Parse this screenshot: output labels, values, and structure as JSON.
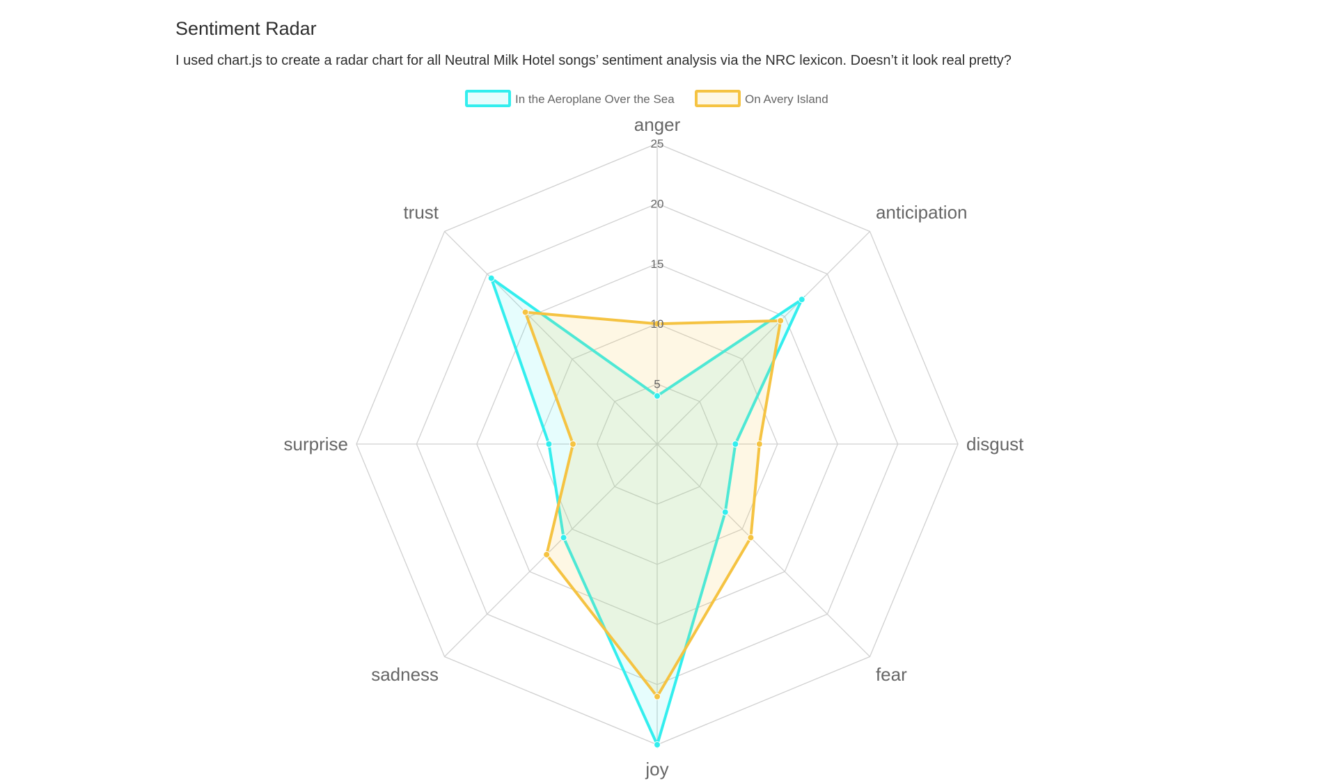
{
  "page": {
    "title": "Sentiment Radar",
    "description": "I used chart.js to create a radar chart for all Neutral Milk Hotel songs’ sentiment analysis via the NRC lexicon. Doesn’t it look real pretty?"
  },
  "chart_data": {
    "type": "radar",
    "categories": [
      "anger",
      "anticipation",
      "disgust",
      "fear",
      "joy",
      "sadness",
      "surprise",
      "trust"
    ],
    "r_ticks": [
      5,
      10,
      15,
      20,
      25
    ],
    "r_range": [
      0,
      25
    ],
    "legend_position": "top",
    "series": [
      {
        "name": "In the Aeroplane Over the Sea",
        "values": [
          4,
          17,
          6.5,
          8,
          25,
          11,
          9,
          19.5
        ],
        "color": "#33eeee",
        "fill": "rgba(51,238,238,0.12)"
      },
      {
        "name": "On Avery Island",
        "values": [
          10,
          14.5,
          8.5,
          11,
          21,
          13,
          7,
          15.5
        ],
        "color": "#f5c342",
        "fill": "rgba(245,195,66,0.14)"
      }
    ]
  }
}
